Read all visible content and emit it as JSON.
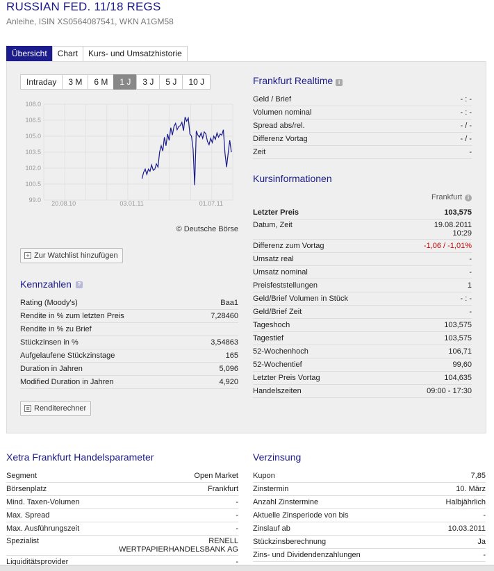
{
  "header": {
    "title": "RUSSIAN FED. 11/18 REGS",
    "subtitle": "Anleihe, ISIN XS0564087541, WKN A1GM58"
  },
  "tabs": [
    {
      "label": "Übersicht",
      "active": true
    },
    {
      "label": "Chart",
      "active": false
    },
    {
      "label": "Kurs- und Umsatzhistorie",
      "active": false
    }
  ],
  "range_tabs": [
    "Intraday",
    "3 M",
    "6 M",
    "1 J",
    "3 J",
    "5 J",
    "10 J"
  ],
  "range_active": "1 J",
  "chart_data": {
    "type": "line",
    "x_ticks": [
      "20.08.10",
      "03.01.11",
      "01.07.11"
    ],
    "y_ticks": [
      "108.0",
      "106.5",
      "105.0",
      "103.5",
      "102.0",
      "100.5",
      "99.0"
    ],
    "ylim": [
      99.0,
      108.0
    ],
    "color": "#1a1a8c",
    "credit": "© Deutsche Börse",
    "series": [
      {
        "values": [
          101.0,
          101.6,
          101.9,
          101.4,
          101.9,
          101.7,
          102.3,
          101.8,
          101.9,
          102.4,
          102.1,
          103.5,
          104.1,
          103.6,
          104.9,
          104.1,
          105.2,
          104.6,
          105.8,
          105.1,
          105.9,
          106.2,
          105.6,
          105.9,
          106.0,
          106.3,
          105.5,
          106.8,
          106.4,
          106.7,
          105.2,
          105.0,
          103.8,
          100.4,
          105.5,
          105.1,
          104.9,
          105.3,
          104.8,
          105.4,
          105.2,
          104.5,
          104.2,
          104.8,
          104.4,
          105.0,
          104.7,
          105.3,
          104.9,
          105.2,
          105.1,
          105.6,
          103.4,
          102.1,
          103.4,
          104.6,
          103.5
        ]
      }
    ]
  },
  "watchlist_button": "Zur Watchlist hinzufügen",
  "kennzahlen": {
    "title": "Kennzahlen",
    "rows": [
      {
        "k": "Rating (Moody's)",
        "v": "Baa1"
      },
      {
        "k": "Rendite in % zum letzten Preis",
        "v": "7,28460"
      },
      {
        "k": "Rendite in % zu Brief",
        "v": ""
      },
      {
        "k": "Stückzinsen in %",
        "v": "3,54863"
      },
      {
        "k": "Aufgelaufene Stückzinstage",
        "v": "165"
      },
      {
        "k": "Duration in Jahren",
        "v": "5,096"
      },
      {
        "k": "Modified Duration in Jahren",
        "v": "4,920"
      }
    ],
    "calc_button": "Renditerechner"
  },
  "realtime": {
    "title": "Frankfurt Realtime",
    "rows": [
      {
        "k": "Geld / Brief",
        "v": "- : -"
      },
      {
        "k": "Volumen nominal",
        "v": "- : -"
      },
      {
        "k": "Spread abs/rel.",
        "v": "- / -"
      },
      {
        "k": "Differenz Vortag",
        "v": "- / -"
      },
      {
        "k": "Zeit",
        "v": "-"
      }
    ]
  },
  "kursinfo": {
    "title": "Kursinformationen",
    "exchange": "Frankfurt",
    "rows": [
      {
        "k": "Letzter Preis",
        "v": "103,575",
        "style": "bold"
      },
      {
        "k": "Datum, Zeit",
        "v": "19.08.2011",
        "v2": "10:29"
      },
      {
        "k": "Differenz zum Vortag",
        "v": "-1,06 / -1,01%",
        "style": "neg"
      },
      {
        "k": "Umsatz real",
        "v": "-"
      },
      {
        "k": "Umsatz nominal",
        "v": "-"
      },
      {
        "k": "Preisfeststellungen",
        "v": "1"
      },
      {
        "k": "Geld/Brief Volumen in Stück",
        "v": "- : -"
      },
      {
        "k": "Geld/Brief Zeit",
        "v": "-"
      },
      {
        "k": "Tageshoch",
        "v": "103,575"
      },
      {
        "k": "Tagestief",
        "v": "103,575"
      },
      {
        "k": "52-Wochenhoch",
        "v": "106,71"
      },
      {
        "k": "52-Wochentief",
        "v": "99,60"
      },
      {
        "k": "Letzter Preis Vortag",
        "v": "104,635"
      },
      {
        "k": "Handelszeiten",
        "v": "09:00 - 17:30"
      }
    ]
  },
  "xetra": {
    "title": "Xetra Frankfurt Handelsparameter",
    "rows": [
      {
        "k": "Segment",
        "v": "Open Market"
      },
      {
        "k": "Börsenplatz",
        "v": "Frankfurt"
      },
      {
        "k": "Mind. Taxen-Volumen",
        "v": "-"
      },
      {
        "k": "Max. Spread",
        "v": "-"
      },
      {
        "k": "Max. Ausführungszeit",
        "v": "-"
      },
      {
        "k": "Spezialist",
        "v": "RENELL",
        "v2": "WERTPAPIERHANDELSBANK AG"
      },
      {
        "k": "Liquiditätsprovider",
        "v": "-"
      }
    ]
  },
  "verzinsung": {
    "title": "Verzinsung",
    "rows": [
      {
        "k": "Kupon",
        "v": "7,85"
      },
      {
        "k": "Zinstermin",
        "v": "10. März"
      },
      {
        "k": "Anzahl Zinstermine",
        "v": "Halbjährlich"
      },
      {
        "k": "Aktuelle Zinsperiode von bis",
        "v": "-"
      },
      {
        "k": "Zinslauf ab",
        "v": "10.03.2011"
      },
      {
        "k": "Stückzinsberechnung",
        "v": "Ja"
      },
      {
        "k": "Zins- und Dividendenzahlungen",
        "v": "-"
      }
    ]
  }
}
